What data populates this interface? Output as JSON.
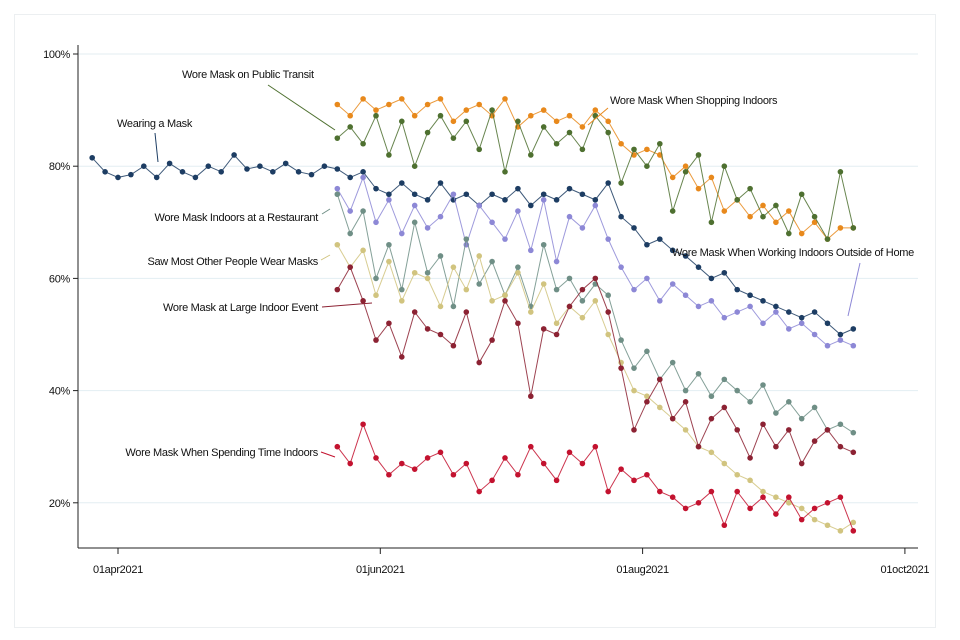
{
  "chart_data": {
    "type": "line",
    "title": "",
    "xlabel": "",
    "ylabel": "",
    "x_unit": "days since 01apr2021",
    "xlim": [
      -9.5,
      186
    ],
    "ylim": [
      13,
      102
    ],
    "grid": true,
    "legend": "none (direct labels)",
    "xticks": [
      {
        "value": 0,
        "label": "01apr2021"
      },
      {
        "value": 61,
        "label": "01jun2021"
      },
      {
        "value": 122,
        "label": "01aug2021"
      },
      {
        "value": 183,
        "label": "01oct2021"
      }
    ],
    "yticks": [
      {
        "value": 20,
        "label": "20%"
      },
      {
        "value": 40,
        "label": "40%"
      },
      {
        "value": 60,
        "label": "60%"
      },
      {
        "value": 80,
        "label": "80%"
      },
      {
        "value": 100,
        "label": "100%"
      }
    ],
    "series": [
      {
        "name": "Wearing a Mask",
        "color": "#1d3d63",
        "x_start": -6,
        "x_step": 3,
        "values": [
          81.5,
          79,
          78,
          78.5,
          80,
          78,
          80.5,
          79,
          78,
          80,
          79,
          82,
          79.5,
          80,
          79,
          80.5,
          79,
          78.5,
          80,
          79.5,
          78,
          79,
          76,
          75,
          77,
          75,
          74,
          77,
          74,
          75,
          73,
          75,
          74,
          76,
          73,
          75,
          74,
          76,
          75,
          74,
          77,
          71,
          69,
          66,
          67,
          65,
          64,
          62,
          60,
          61,
          58,
          57,
          56,
          55,
          54,
          53,
          54,
          52,
          50,
          51
        ]
      },
      {
        "name": "Wore Mask When Shopping Indoors",
        "color": "#e8891c",
        "x_start": 51,
        "x_step": 3,
        "values": [
          91,
          89,
          92,
          90,
          91,
          92,
          89,
          91,
          92,
          88,
          90,
          91,
          89,
          92,
          87,
          89,
          90,
          88,
          89,
          87,
          90,
          88,
          84,
          82,
          83,
          82,
          78,
          80,
          76,
          78,
          72,
          74,
          71,
          73,
          70,
          72,
          68,
          70,
          67,
          69,
          69
        ]
      },
      {
        "name": "Wore Mask on Public Transit",
        "color": "#4e7030",
        "x_start": 51,
        "x_step": 3,
        "values": [
          85,
          87,
          84,
          89,
          82,
          88,
          80,
          86,
          89,
          85,
          88,
          83,
          90,
          79,
          88,
          82,
          87,
          84,
          86,
          83,
          89,
          86,
          77,
          83,
          80,
          84,
          72,
          79,
          82,
          70,
          80,
          74,
          76,
          71,
          73,
          68,
          75,
          71,
          67,
          79,
          69
        ]
      },
      {
        "name": "Wore Mask When Working Indoors Outside of Home",
        "color": "#8d88d6",
        "x_start": 51,
        "x_step": 3,
        "values": [
          76,
          72,
          78,
          70,
          74,
          68,
          73,
          69,
          71,
          75,
          66,
          73,
          70,
          67,
          72,
          65,
          74,
          63,
          71,
          69,
          73,
          67,
          62,
          58,
          60,
          56,
          59,
          57,
          55,
          56,
          53,
          54,
          55,
          52,
          54,
          51,
          52,
          50,
          48,
          49,
          48
        ]
      },
      {
        "name": "Wore Mask Indoors at a Restaurant",
        "color": "#6f8f86",
        "x_start": 51,
        "x_step": 3,
        "values": [
          75,
          68,
          72,
          60,
          66,
          58,
          70,
          61,
          64,
          55,
          67,
          59,
          63,
          57,
          62,
          55,
          66,
          58,
          60,
          56,
          59,
          57,
          49,
          44,
          47,
          42,
          45,
          40,
          43,
          39,
          42,
          40,
          38,
          41,
          36,
          38,
          35,
          37,
          33,
          34,
          32.5
        ]
      },
      {
        "name": "Saw Most Other People Wear Masks",
        "color": "#d1c47f",
        "x_start": 51,
        "x_step": 3,
        "values": [
          66,
          62,
          65,
          57,
          63,
          56,
          61,
          60,
          55,
          62,
          58,
          64,
          56,
          57,
          61,
          54,
          59,
          52,
          55,
          53,
          56,
          50,
          45,
          40,
          39,
          37,
          35,
          33,
          30,
          29,
          27,
          25,
          24,
          22,
          21,
          20,
          19,
          17,
          16,
          15,
          16.5
        ]
      },
      {
        "name": "Wore Mask at Large Indoor Event",
        "color": "#8c2233",
        "x_start": 51,
        "x_step": 3,
        "values": [
          58,
          62,
          56,
          49,
          52,
          46,
          54,
          51,
          50,
          48,
          54,
          45,
          49,
          56,
          52,
          39,
          51,
          50,
          55,
          58,
          60,
          54,
          44,
          33,
          38,
          42,
          35,
          38,
          30,
          35,
          37,
          33,
          28,
          34,
          30,
          33,
          27,
          31,
          33,
          30,
          29
        ]
      },
      {
        "name": "Wore Mask When Spending Time Indoors",
        "color": "#c3122f",
        "x_start": 51,
        "x_step": 3,
        "values": [
          30,
          27,
          34,
          28,
          25,
          27,
          26,
          28,
          29,
          25,
          27,
          22,
          24,
          28,
          25,
          30,
          27,
          24,
          29,
          27,
          30,
          22,
          26,
          24,
          25,
          22,
          21,
          19,
          20,
          22,
          16,
          22,
          19,
          21,
          18,
          21,
          17,
          19,
          20,
          21,
          15
        ]
      }
    ]
  }
}
